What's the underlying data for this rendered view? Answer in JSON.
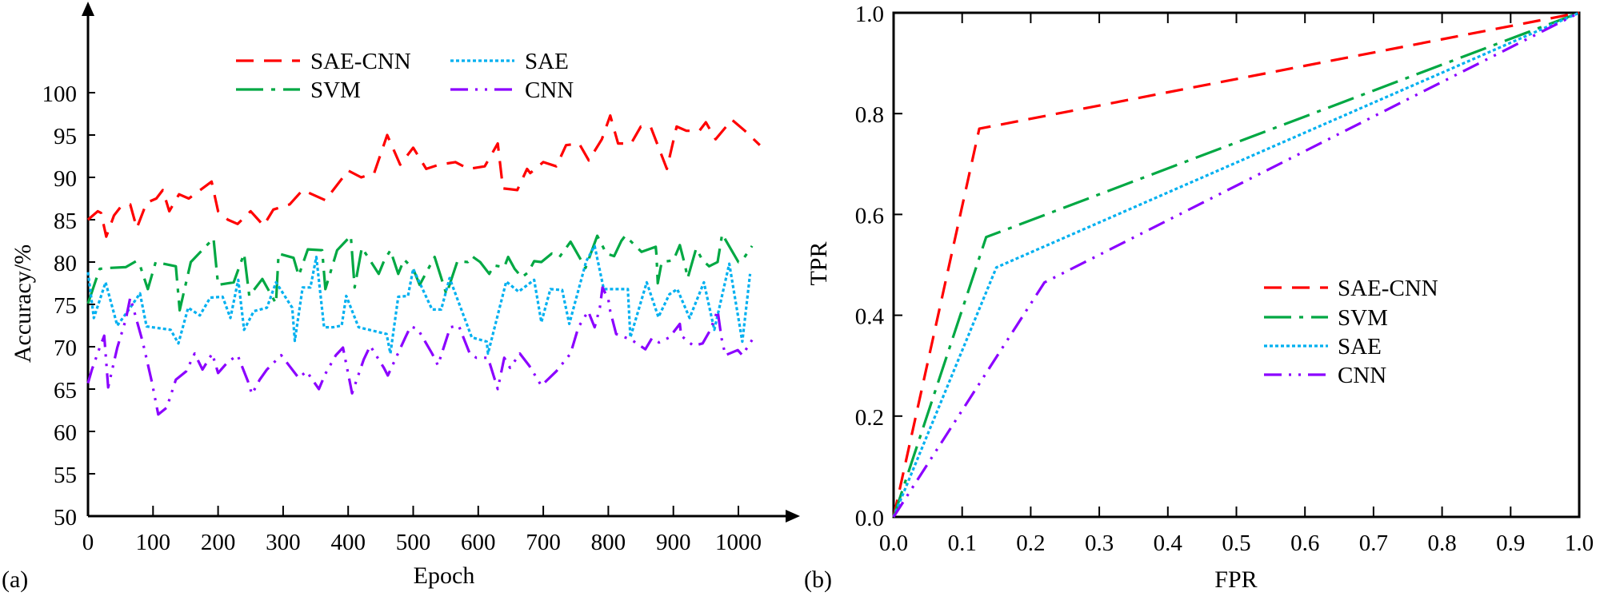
{
  "chart_data": [
    {
      "type": "line",
      "panel_label": "(a)",
      "xlabel": "Epoch",
      "ylabel": "Accuracy/%",
      "xlim": [
        0,
        1060
      ],
      "ylim": [
        50,
        105
      ],
      "xticks": [
        0,
        100,
        200,
        300,
        400,
        500,
        600,
        700,
        800,
        900,
        1000
      ],
      "yticks": [
        50,
        55,
        60,
        65,
        70,
        75,
        80,
        85,
        90,
        95,
        100
      ],
      "grid": false,
      "legend_position": "top-center",
      "series": [
        {
          "name": "SAE-CNN",
          "color": "#ff0000",
          "style": "dashed",
          "x": [
            0,
            15,
            20,
            28,
            40,
            50,
            65,
            75,
            90,
            105,
            115,
            125,
            140,
            155,
            190,
            200,
            215,
            230,
            250,
            270,
            285,
            310,
            330,
            365,
            400,
            420,
            440,
            460,
            480,
            500,
            520,
            540,
            565,
            585,
            610,
            630,
            638,
            660,
            675,
            680,
            700,
            720,
            735,
            755,
            770,
            790,
            803,
            815,
            835,
            850,
            865,
            890,
            905,
            920,
            940,
            950,
            965,
            990,
            1010,
            1033
          ],
          "y": [
            85,
            86,
            85.8,
            83,
            85.5,
            86.5,
            86.8,
            84,
            87,
            87.5,
            88.5,
            86,
            88,
            87.5,
            89.5,
            86,
            85,
            84.5,
            86,
            84.3,
            86.2,
            86.8,
            88.5,
            87.3,
            90.8,
            90,
            90.5,
            95,
            91.5,
            93.5,
            91,
            91.5,
            91.8,
            91,
            91.3,
            94,
            88.7,
            88.5,
            91,
            90.5,
            91.8,
            91.3,
            93.8,
            94,
            92,
            94.5,
            97.3,
            94,
            94,
            96,
            96,
            91,
            96,
            95.5,
            95.5,
            96.5,
            94.5,
            96.8,
            95.5,
            93.8
          ]
        },
        {
          "name": "SVM",
          "color": "#00a843",
          "style": "long-dash-dot",
          "x": [
            0,
            18,
            32,
            58,
            74,
            80,
            92,
            104,
            135,
            141,
            158,
            193,
            200,
            224,
            240,
            248,
            268,
            289,
            293,
            316,
            324,
            338,
            360,
            365,
            383,
            404,
            410,
            421,
            437,
            447,
            455,
            465,
            477,
            486,
            500,
            510,
            533,
            551,
            568,
            584,
            590,
            603,
            617,
            624,
            640,
            646,
            656,
            667,
            677,
            686,
            697,
            713,
            725,
            742,
            765,
            783,
            797,
            809,
            820,
            826,
            851,
            873,
            874,
            876,
            882,
            900,
            910,
            918,
            922,
            935,
            945,
            955,
            968,
            975,
            1000,
            1006,
            1021
          ],
          "y": [
            75.1,
            79.2,
            79.3,
            79.4,
            80.1,
            79.6,
            76.8,
            80,
            79.5,
            74.3,
            80,
            82.8,
            77.3,
            77.6,
            81,
            76,
            78,
            75.1,
            81,
            80.5,
            78.4,
            81.5,
            81.4,
            76.8,
            81.4,
            83.1,
            77,
            81.7,
            79.8,
            78.6,
            80.1,
            81.4,
            78.6,
            80.3,
            79.2,
            77.3,
            80.6,
            76.2,
            80.1,
            80,
            80.7,
            80,
            78.6,
            79.6,
            79.4,
            80.6,
            79.2,
            78.2,
            78.8,
            80.1,
            80,
            81,
            80.6,
            82.4,
            79.3,
            83.1,
            81,
            80.7,
            82.5,
            83.1,
            81.2,
            81.8,
            80.8,
            77.5,
            80,
            80.2,
            82,
            79.6,
            78.1,
            81.6,
            80.2,
            79.5,
            80,
            83.3,
            80,
            80.2,
            81.9
          ]
        },
        {
          "name": "SAE",
          "color": "#00b0f0",
          "style": "dotted",
          "x": [
            0,
            9,
            27,
            45,
            65,
            80,
            90,
            127,
            139,
            154,
            172,
            188,
            207,
            219,
            231,
            240,
            255,
            275,
            289,
            314,
            318,
            330,
            342,
            351,
            363,
            377,
            390,
            397,
            416,
            459,
            465,
            477,
            492,
            500,
            529,
            543,
            556,
            590,
            613,
            615,
            643,
            662,
            686,
            697,
            711,
            729,
            740,
            766,
            779,
            793,
            830,
            834,
            859,
            877,
            894,
            906,
            925,
            947,
            963,
            986,
            1006,
            1018
          ],
          "y": [
            78.8,
            73.4,
            77.6,
            72.5,
            74.6,
            76.3,
            72.4,
            72,
            70.4,
            74.6,
            73.7,
            75.8,
            75.9,
            73.4,
            77.9,
            72,
            74.2,
            74.6,
            77.6,
            74.6,
            70.7,
            77,
            77,
            80.6,
            72.3,
            72.3,
            72.5,
            76,
            72.3,
            71.5,
            69.2,
            75.9,
            76,
            79.2,
            74.4,
            74.4,
            78.1,
            71.1,
            70.6,
            69.2,
            77.7,
            76.5,
            77.9,
            72.9,
            76.8,
            76.7,
            72.7,
            80.1,
            81.9,
            76.8,
            76.8,
            71.1,
            77.6,
            73.5,
            76.2,
            76.8,
            73.4,
            77.6,
            72,
            79.8,
            70.6,
            78.6
          ]
        },
        {
          "name": "CNN",
          "color": "#8b00ff",
          "style": "dash-dot-dot",
          "x": [
            0,
            6,
            18,
            25,
            31,
            45,
            58,
            65,
            68,
            84,
            98,
            108,
            121,
            135,
            151,
            164,
            176,
            191,
            200,
            215,
            230,
            246,
            252,
            264,
            275,
            297,
            324,
            336,
            355,
            365,
            381,
            392,
            406,
            424,
            434,
            455,
            461,
            488,
            496,
            507,
            529,
            538,
            557,
            570,
            587,
            597,
            615,
            630,
            640,
            649,
            664,
            679,
            697,
            720,
            742,
            754,
            769,
            779,
            787,
            791,
            800,
            803,
            812,
            836,
            857,
            867,
            878,
            894,
            910,
            912,
            931,
            945,
            957,
            968,
            974,
            980,
            999,
            1006,
            1021
          ],
          "y": [
            65.7,
            67.3,
            69.9,
            71.3,
            65.2,
            69.9,
            73.2,
            75.8,
            75,
            70.6,
            65.9,
            62,
            62.8,
            66.1,
            67.1,
            69.2,
            67.3,
            69.2,
            66.9,
            68.2,
            69,
            65.9,
            64.4,
            66.1,
            67.3,
            69,
            66.3,
            67.1,
            65,
            66.8,
            69,
            69.9,
            64.5,
            68.5,
            70.1,
            67.5,
            66.6,
            71.1,
            72.4,
            72.1,
            69.2,
            67.8,
            72.3,
            72.5,
            69.2,
            68.7,
            68.7,
            65,
            68.7,
            67.5,
            69.2,
            67.7,
            65.4,
            67.1,
            69.2,
            72.3,
            74.2,
            72.3,
            74.6,
            77,
            75.6,
            74.2,
            71.5,
            70.8,
            69.7,
            71,
            70.5,
            71.1,
            72.7,
            71.3,
            70.1,
            70.4,
            72,
            74.3,
            71,
            69,
            69.6,
            69,
            70.8
          ]
        }
      ]
    },
    {
      "type": "line",
      "panel_label": "(b)",
      "xlabel": "FPR",
      "ylabel": "TPR",
      "xlim": [
        0,
        1
      ],
      "ylim": [
        0,
        1
      ],
      "xticks": [
        "0.0",
        "0.1",
        "0.2",
        "0.3",
        "0.4",
        "0.5",
        "0.6",
        "0.7",
        "0.8",
        "0.9",
        "1.0"
      ],
      "yticks": [
        "0.0",
        "0.2",
        "0.4",
        "0.6",
        "0.8",
        "1.0"
      ],
      "grid": false,
      "legend_position": "center-right",
      "series": [
        {
          "name": "SAE-CNN",
          "color": "#ff0000",
          "style": "dashed",
          "x": [
            0,
            0.125,
            1
          ],
          "y": [
            0,
            0.77,
            1
          ]
        },
        {
          "name": "SVM",
          "color": "#00a843",
          "style": "long-dash-dot",
          "x": [
            0,
            0.135,
            1
          ],
          "y": [
            0,
            0.555,
            1
          ]
        },
        {
          "name": "SAE",
          "color": "#00b0f0",
          "style": "dotted",
          "x": [
            0,
            0.15,
            1
          ],
          "y": [
            0,
            0.495,
            1
          ]
        },
        {
          "name": "CNN",
          "color": "#8b00ff",
          "style": "dash-dot-dot",
          "x": [
            0,
            0.22,
            1
          ],
          "y": [
            0,
            0.465,
            1
          ]
        }
      ]
    }
  ]
}
